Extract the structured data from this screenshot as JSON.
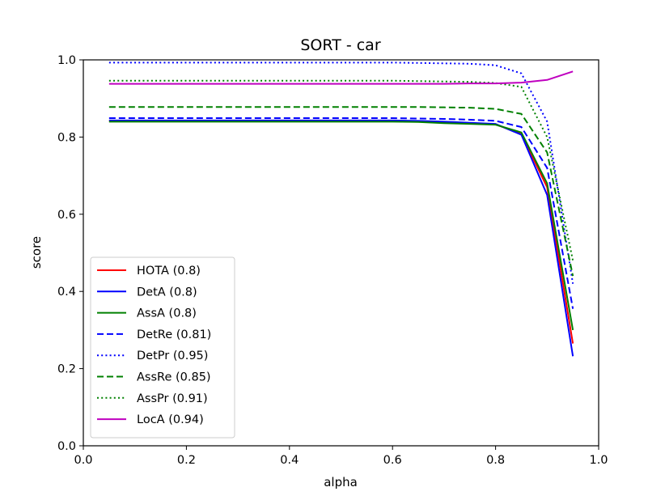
{
  "chart_data": {
    "type": "line",
    "title": "SORT - car",
    "xlabel": "alpha",
    "ylabel": "score",
    "xlim": [
      0.0,
      1.0
    ],
    "ylim": [
      0.0,
      1.0
    ],
    "xticks": [
      "0.0",
      "0.2",
      "0.4",
      "0.6",
      "0.8",
      "1.0"
    ],
    "yticks": [
      "0.0",
      "0.2",
      "0.4",
      "0.6",
      "0.8",
      "1.0"
    ],
    "grid": false,
    "legend_position": "lower-left",
    "x": [
      0.05,
      0.1,
      0.15,
      0.2,
      0.25,
      0.3,
      0.35,
      0.4,
      0.45,
      0.5,
      0.55,
      0.6,
      0.65,
      0.7,
      0.75,
      0.8,
      0.85,
      0.9,
      0.95
    ],
    "series": [
      {
        "name": "HOTA (0.8)",
        "color": "#ff0000",
        "style": "solid",
        "values": [
          0.842,
          0.842,
          0.842,
          0.842,
          0.842,
          0.842,
          0.842,
          0.842,
          0.842,
          0.842,
          0.842,
          0.842,
          0.841,
          0.838,
          0.836,
          0.833,
          0.808,
          0.67,
          0.265
        ]
      },
      {
        "name": "DetA (0.8)",
        "color": "#0000ff",
        "style": "solid",
        "values": [
          0.843,
          0.843,
          0.843,
          0.843,
          0.843,
          0.843,
          0.843,
          0.843,
          0.843,
          0.843,
          0.843,
          0.843,
          0.842,
          0.84,
          0.837,
          0.834,
          0.806,
          0.65,
          0.232
        ]
      },
      {
        "name": "AssA (0.8)",
        "color": "#008000",
        "style": "solid",
        "values": [
          0.84,
          0.84,
          0.84,
          0.84,
          0.84,
          0.84,
          0.84,
          0.84,
          0.84,
          0.84,
          0.84,
          0.84,
          0.839,
          0.836,
          0.834,
          0.832,
          0.812,
          0.68,
          0.3
        ]
      },
      {
        "name": "DetRe (0.81)",
        "color": "#0000ff",
        "style": "dashed",
        "values": [
          0.849,
          0.849,
          0.849,
          0.849,
          0.849,
          0.849,
          0.849,
          0.849,
          0.849,
          0.849,
          0.849,
          0.849,
          0.848,
          0.847,
          0.845,
          0.842,
          0.826,
          0.72,
          0.355
        ]
      },
      {
        "name": "DetPr (0.95)",
        "color": "#0000ff",
        "style": "dotted",
        "values": [
          0.993,
          0.993,
          0.993,
          0.993,
          0.993,
          0.993,
          0.993,
          0.993,
          0.993,
          0.993,
          0.993,
          0.993,
          0.992,
          0.991,
          0.99,
          0.986,
          0.965,
          0.84,
          0.42
        ]
      },
      {
        "name": "AssRe (0.85)",
        "color": "#008000",
        "style": "dashed",
        "values": [
          0.878,
          0.878,
          0.878,
          0.878,
          0.878,
          0.878,
          0.878,
          0.878,
          0.878,
          0.878,
          0.878,
          0.878,
          0.878,
          0.877,
          0.876,
          0.873,
          0.86,
          0.76,
          0.44
        ]
      },
      {
        "name": "AssPr (0.91)",
        "color": "#008000",
        "style": "dotted",
        "values": [
          0.946,
          0.946,
          0.946,
          0.946,
          0.946,
          0.946,
          0.946,
          0.946,
          0.946,
          0.946,
          0.946,
          0.946,
          0.945,
          0.944,
          0.943,
          0.94,
          0.93,
          0.8,
          0.48
        ]
      },
      {
        "name": "LocA (0.94)",
        "color": "#bf00bf",
        "style": "solid",
        "values": [
          0.938,
          0.938,
          0.938,
          0.938,
          0.938,
          0.938,
          0.938,
          0.938,
          0.938,
          0.938,
          0.938,
          0.938,
          0.938,
          0.938,
          0.939,
          0.939,
          0.941,
          0.948,
          0.97
        ]
      }
    ]
  }
}
